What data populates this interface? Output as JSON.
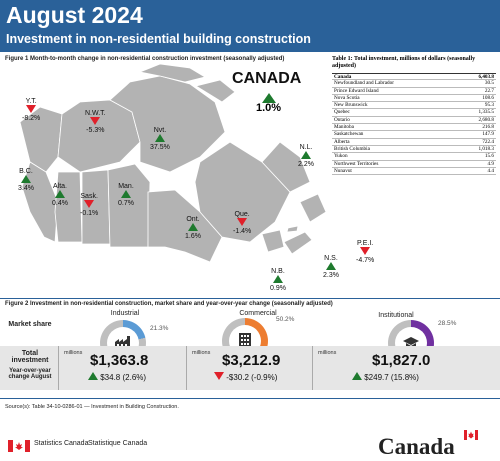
{
  "header": {
    "title": "August 2024",
    "subtitle": "Investment in non-residential building construction"
  },
  "figure1": {
    "title": "Figure 1  Month-to-month change in non-residential construction investment (seasonally adjusted)",
    "canada_label": "CANADA",
    "canada_value": "1.0%",
    "provinces": [
      {
        "name": "Y.T.",
        "value": "-8.2%",
        "direction": "down"
      },
      {
        "name": "N.W.T.",
        "value": "-5.3%",
        "direction": "down"
      },
      {
        "name": "Nvt.",
        "value": "37.5%",
        "direction": "up"
      },
      {
        "name": "B.C.",
        "value": "3.4%",
        "direction": "up"
      },
      {
        "name": "Alta.",
        "value": "0.4%",
        "direction": "up"
      },
      {
        "name": "Sask.",
        "value": "-0.1%",
        "direction": "down"
      },
      {
        "name": "Man.",
        "value": "0.7%",
        "direction": "up"
      },
      {
        "name": "Ont.",
        "value": "1.6%",
        "direction": "up"
      },
      {
        "name": "Que.",
        "value": "-1.4%",
        "direction": "down"
      },
      {
        "name": "N.L.",
        "value": "2.2%",
        "direction": "up"
      },
      {
        "name": "P.E.I.",
        "value": "-4.7%",
        "direction": "down"
      },
      {
        "name": "N.S.",
        "value": "2.3%",
        "direction": "up"
      },
      {
        "name": "N.B.",
        "value": "0.9%",
        "direction": "up"
      }
    ],
    "colors": {
      "up": "#1e7a2e",
      "down": "#e0202a",
      "land": "#b3b3b3",
      "water": "#ffffff"
    }
  },
  "table1": {
    "title": "Table 1: Total investment, millions of dollars (seasonally adjusted)",
    "rows": [
      {
        "region": "Canada",
        "value": "6,403.8"
      },
      {
        "region": "Newfoundland and Labrador",
        "value": "30.5"
      },
      {
        "region": "Prince Edward Island",
        "value": "22.7"
      },
      {
        "region": "Nova Scotia",
        "value": "108.6"
      },
      {
        "region": "New Brunswick",
        "value": "95.3"
      },
      {
        "region": "Quebec",
        "value": "1,335.5"
      },
      {
        "region": "Ontario",
        "value": "2,680.8"
      },
      {
        "region": "Manitoba",
        "value": "216.8"
      },
      {
        "region": "Saskatchewan",
        "value": "147.9"
      },
      {
        "region": "Alberta",
        "value": "722.4"
      },
      {
        "region": "British Columbia",
        "value": "1,018.3"
      },
      {
        "region": "Yukon",
        "value": "15.6"
      },
      {
        "region": "Northwest Territories",
        "value": "4.9"
      },
      {
        "region": "Nunavut",
        "value": "4.4"
      }
    ]
  },
  "figure2": {
    "title": "Figure 2  Investment in non-residential construction, market share and year-over-year change (seasonally adjusted)",
    "row_labels": {
      "market_share": "Market share",
      "total_investment": "Total investment",
      "yoy": "Year-over-year change August"
    },
    "sectors": [
      {
        "name": "Industrial",
        "share": 21.3,
        "share_label": "21.3%",
        "color": "#5b9bd5",
        "icon": "factory-icon",
        "units": "millions",
        "total": "$1,363.8",
        "change": "$34.8 (2.6%)",
        "direction": "up"
      },
      {
        "name": "Commercial",
        "share": 50.2,
        "share_label": "50.2%",
        "color": "#ed7d31",
        "icon": "office-building-icon",
        "units": "millions",
        "total": "$3,212.9",
        "change": "-$30.2 (-0.9%)",
        "direction": "down"
      },
      {
        "name": "Institutional",
        "share": 28.5,
        "share_label": "28.5%",
        "color": "#7030a0",
        "icon": "graduation-cap-icon",
        "units": "millions",
        "total": "$1,827.0",
        "change": "$249.7 (15.8%)",
        "direction": "up"
      }
    ]
  },
  "footer": {
    "source": "Source(s): Table 34-10-0286-01 — Investment in Building Construction.",
    "agency_en": "Statistics Canada",
    "agency_fr": "Statistique Canada",
    "wordmark": "Canada"
  }
}
